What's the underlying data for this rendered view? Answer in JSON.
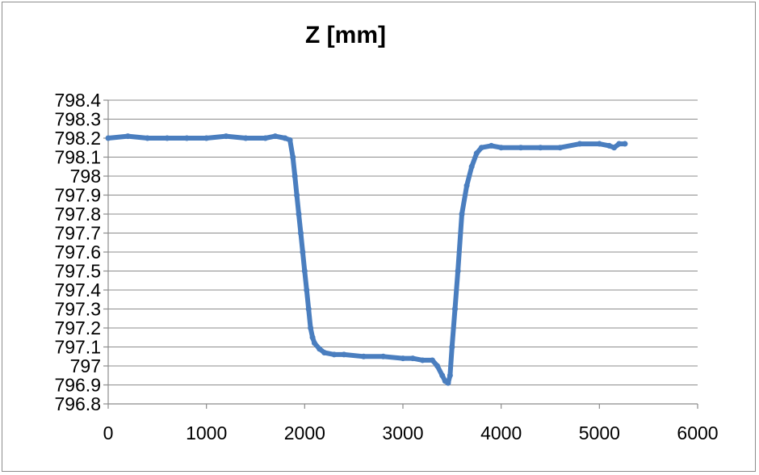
{
  "chart_data": {
    "type": "line",
    "title": "Z  [mm]",
    "xlabel": "",
    "ylabel": "",
    "xlim": [
      0,
      6000
    ],
    "ylim": [
      796.8,
      798.4
    ],
    "x_ticks": [
      "0",
      "1000",
      "2000",
      "3000",
      "4000",
      "5000",
      "6000"
    ],
    "y_ticks": [
      "798.4",
      "798.3",
      "798.2",
      "798.1",
      "798",
      "797.9",
      "797.8",
      "797.7",
      "797.6",
      "797.5",
      "797.4",
      "797.3",
      "797.2",
      "797.1",
      "797",
      "796.9",
      "796.8"
    ],
    "grid": "horizontal",
    "legend": "none",
    "series": [
      {
        "color": "#4a7ebf",
        "x": [
          0,
          200,
          400,
          600,
          800,
          1000,
          1200,
          1400,
          1600,
          1700,
          1800,
          1850,
          1880,
          1900,
          1920,
          1940,
          1960,
          1980,
          2000,
          2020,
          2040,
          2060,
          2080,
          2100,
          2150,
          2200,
          2300,
          2400,
          2600,
          2800,
          3000,
          3100,
          3200,
          3300,
          3350,
          3400,
          3430,
          3460,
          3480,
          3500,
          3530,
          3560,
          3600,
          3650,
          3700,
          3750,
          3800,
          3900,
          4000,
          4200,
          4400,
          4600,
          4800,
          5000,
          5100,
          5150,
          5200,
          5260
        ],
        "y": [
          798.2,
          798.21,
          798.2,
          798.2,
          798.2,
          798.2,
          798.21,
          798.2,
          798.2,
          798.21,
          798.2,
          798.19,
          798.1,
          798.0,
          797.9,
          797.8,
          797.7,
          797.6,
          797.5,
          797.4,
          797.3,
          797.2,
          797.15,
          797.12,
          797.09,
          797.07,
          797.06,
          797.06,
          797.05,
          797.05,
          797.04,
          797.04,
          797.03,
          797.03,
          797.0,
          796.95,
          796.92,
          796.91,
          796.95,
          797.1,
          797.3,
          797.5,
          797.8,
          797.95,
          798.05,
          798.12,
          798.15,
          798.16,
          798.15,
          798.15,
          798.15,
          798.15,
          798.17,
          798.17,
          798.16,
          798.15,
          798.17,
          798.17
        ]
      }
    ]
  }
}
